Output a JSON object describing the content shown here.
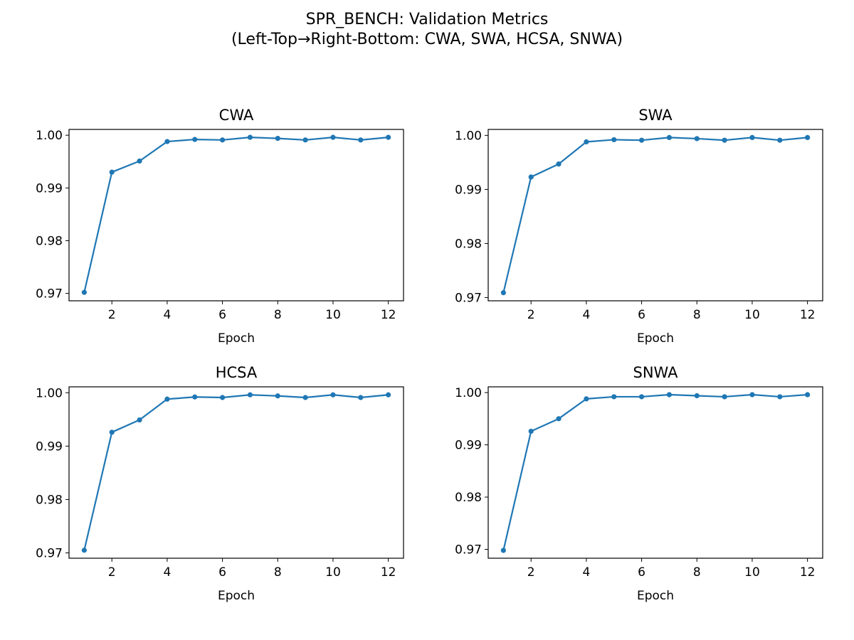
{
  "figure": {
    "title_line1": "SPR_BENCH: Validation Metrics",
    "title_line2": "(Left-Top→Right-Bottom: CWA, SWA, HCSA, SNWA)"
  },
  "colors": {
    "series": "#1f77b4",
    "axes": "#000000",
    "background": "#ffffff"
  },
  "chart_data": [
    {
      "type": "line",
      "title": "CWA",
      "xlabel": "Epoch",
      "ylabel": "",
      "x": [
        1,
        2,
        3,
        4,
        5,
        6,
        7,
        8,
        9,
        10,
        11,
        12
      ],
      "series": [
        {
          "values": [
            0.9702,
            0.993,
            0.9951,
            0.9988,
            0.9992,
            0.9991,
            0.9996,
            0.9994,
            0.9991,
            0.9996,
            0.9991,
            0.9996
          ]
        }
      ],
      "xticks": [
        2,
        4,
        6,
        8,
        10,
        12
      ],
      "yticks": [
        "1.00",
        "0.99",
        "0.98",
        "0.97"
      ],
      "xlim": [
        0.45,
        12.55
      ],
      "ylim": [
        0.9686,
        1.0011
      ],
      "grid": false
    },
    {
      "type": "line",
      "title": "SWA",
      "xlabel": "Epoch",
      "ylabel": "",
      "x": [
        1,
        2,
        3,
        4,
        5,
        6,
        7,
        8,
        9,
        10,
        11,
        12
      ],
      "series": [
        {
          "values": [
            0.9709,
            0.9923,
            0.9947,
            0.9988,
            0.9992,
            0.9991,
            0.9996,
            0.9994,
            0.9991,
            0.9996,
            0.9991,
            0.9996
          ]
        }
      ],
      "xticks": [
        2,
        4,
        6,
        8,
        10,
        12
      ],
      "yticks": [
        "1.00",
        "0.99",
        "0.98",
        "0.97"
      ],
      "xlim": [
        0.45,
        12.55
      ],
      "ylim": [
        0.9694,
        1.0011
      ],
      "grid": false
    },
    {
      "type": "line",
      "title": "HCSA",
      "xlabel": "Epoch",
      "ylabel": "",
      "x": [
        1,
        2,
        3,
        4,
        5,
        6,
        7,
        8,
        9,
        10,
        11,
        12
      ],
      "series": [
        {
          "values": [
            0.9705,
            0.9926,
            0.9949,
            0.9988,
            0.9992,
            0.9991,
            0.9996,
            0.9994,
            0.9991,
            0.9996,
            0.9991,
            0.9996
          ]
        }
      ],
      "xticks": [
        2,
        4,
        6,
        8,
        10,
        12
      ],
      "yticks": [
        "1.00",
        "0.99",
        "0.98",
        "0.97"
      ],
      "xlim": [
        0.45,
        12.55
      ],
      "ylim": [
        0.969,
        1.0011
      ],
      "grid": false
    },
    {
      "type": "line",
      "title": "SNWA",
      "xlabel": "Epoch",
      "ylabel": "",
      "x": [
        1,
        2,
        3,
        4,
        5,
        6,
        7,
        8,
        9,
        10,
        11,
        12
      ],
      "series": [
        {
          "values": [
            0.9698,
            0.9926,
            0.995,
            0.9988,
            0.9992,
            0.9992,
            0.9996,
            0.9994,
            0.9992,
            0.9996,
            0.9992,
            0.9996
          ]
        }
      ],
      "xticks": [
        2,
        4,
        6,
        8,
        10,
        12
      ],
      "yticks": [
        "1.00",
        "0.99",
        "0.98",
        "0.97"
      ],
      "xlim": [
        0.45,
        12.55
      ],
      "ylim": [
        0.9683,
        1.0011
      ],
      "grid": false
    }
  ]
}
